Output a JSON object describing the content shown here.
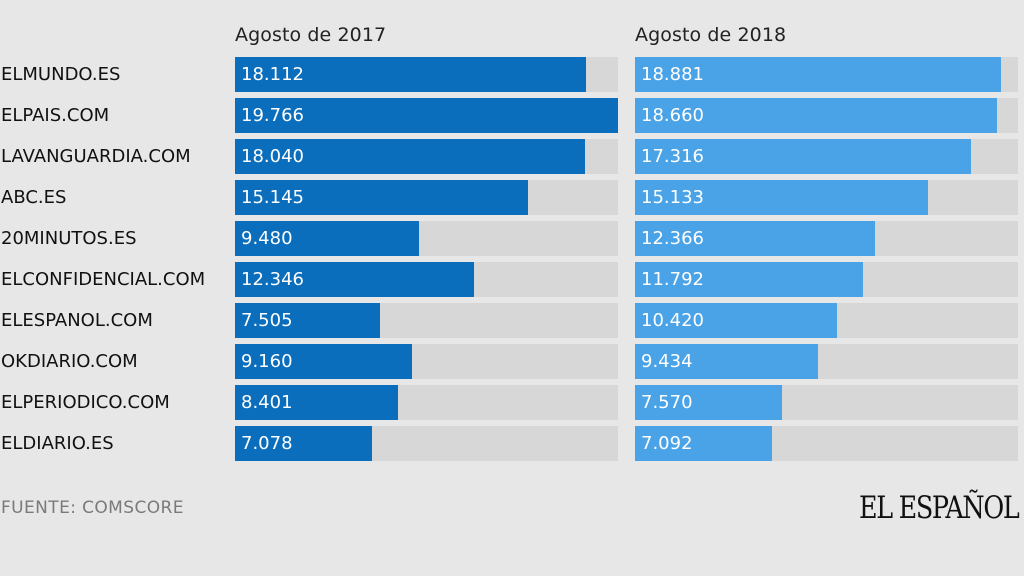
{
  "chart_data": {
    "type": "bar",
    "orientation": "horizontal",
    "categories": [
      "ELMUNDO.ES",
      "ELPAIS.COM",
      "LAVANGUARDIA.COM",
      "ABC.ES",
      "20MINUTOS.ES",
      "ELCONFIDENCIAL.COM",
      "ELESPANOL.COM",
      "OKDIARIO.COM",
      "ELPERIODICO.COM",
      "ELDIARIO.ES"
    ],
    "series": [
      {
        "name": "Agosto de 2017",
        "color": "#0a6ebd",
        "values": [
          18112,
          19766,
          18040,
          15145,
          9480,
          12346,
          7505,
          9160,
          8401,
          7078
        ],
        "labels": [
          "18.112",
          "19.766",
          "18.040",
          "15.145",
          "9.480",
          "12.346",
          "7.505",
          "9.160",
          "8.401",
          "7.078"
        ]
      },
      {
        "name": "Agosto de 2018",
        "color": "#4aa3e6",
        "values": [
          18881,
          18660,
          17316,
          15133,
          12366,
          11792,
          10420,
          9434,
          7570,
          7092
        ],
        "labels": [
          "18.881",
          "18.660",
          "17.316",
          "15.133",
          "12.366",
          "11.792",
          "10.420",
          "9.434",
          "7.570",
          "7.092"
        ]
      }
    ],
    "xlim": [
      0,
      19766
    ],
    "track_color": "#d7d7d7",
    "grid": false,
    "source": "FUENTE: COMSCORE"
  },
  "brand": {
    "logo_text": "EL ESPAÑOL"
  }
}
